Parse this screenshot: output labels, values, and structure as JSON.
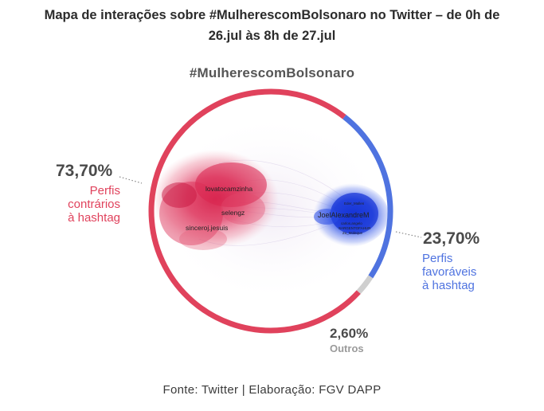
{
  "header": {
    "title_line1": "Mapa de interações sobre #MulherescomBolsonaro no Twitter – de 0h de",
    "title_line2": "26.jul às 8h de 27.jul"
  },
  "diagram": {
    "hashtag": "#MulherescomBolsonaro",
    "groups": [
      {
        "id": "contrarios",
        "share_percent": 73.7,
        "percent_label": "73,70%",
        "label_lines": [
          "Perfis",
          "contrários",
          "à hashtag"
        ],
        "color": "#e0425c"
      },
      {
        "id": "favoraveis",
        "share_percent": 23.7,
        "percent_label": "23,70%",
        "label_lines": [
          "Perfis",
          "favoráveis",
          "à hashtag"
        ],
        "color": "#4f73e0"
      },
      {
        "id": "outros",
        "share_percent": 2.6,
        "percent_label": "2,60%",
        "label_lines": [
          "Outros"
        ],
        "color": "#cfcfcf"
      }
    ],
    "node_labels": {
      "red": [
        "lovatocamzinha",
        "selengz",
        "sinceroj.jesuis"
      ],
      "blue": [
        "JoelAlexandreM",
        "Eder_Mallen",
        "carlos.angelo",
        "SARGENTOFAHUR",
        "Zo_Moleque"
      ]
    }
  },
  "footer": {
    "source": "Fonte: Twitter | Elaboração: FGV DAPP"
  }
}
